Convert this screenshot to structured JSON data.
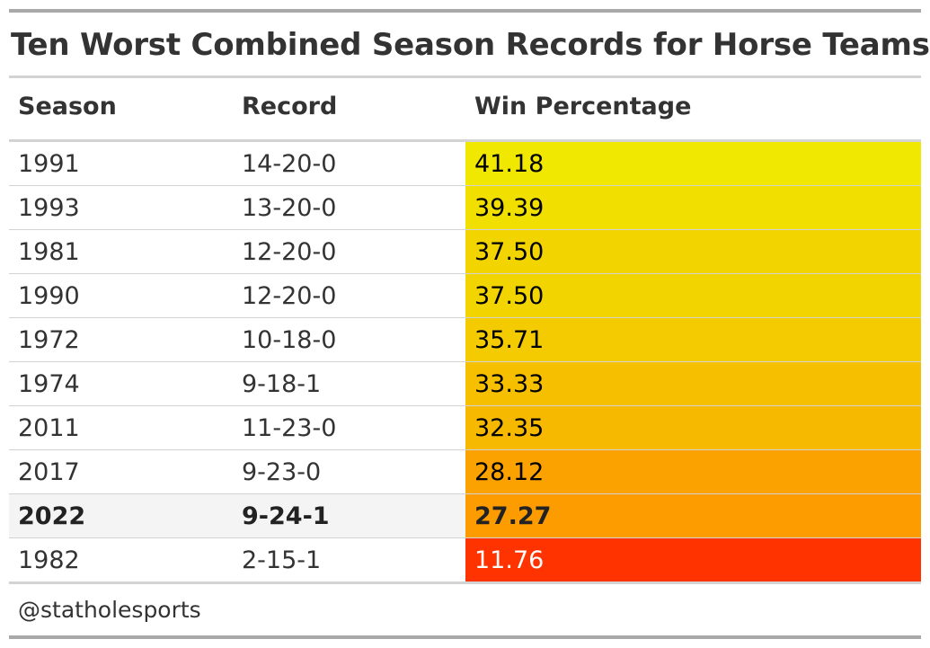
{
  "chart_data": {
    "type": "table",
    "title": "Ten Worst Combined Season Records for Horse Teams",
    "columns": [
      "Season",
      "Record",
      "Win Percentage"
    ],
    "rows": [
      {
        "season": "1991",
        "record": "14-20-0",
        "win_pct": "41.18",
        "value": 41.18,
        "color": "#f0e800",
        "highlight": false
      },
      {
        "season": "1993",
        "record": "13-20-0",
        "win_pct": "39.39",
        "value": 39.39,
        "color": "#f1df00",
        "highlight": false
      },
      {
        "season": "1981",
        "record": "12-20-0",
        "win_pct": "37.50",
        "value": 37.5,
        "color": "#f2d500",
        "highlight": false
      },
      {
        "season": "1990",
        "record": "12-20-0",
        "win_pct": "37.50",
        "value": 37.5,
        "color": "#f2d500",
        "highlight": false
      },
      {
        "season": "1972",
        "record": "10-18-0",
        "win_pct": "35.71",
        "value": 35.71,
        "color": "#f3cb00",
        "highlight": false
      },
      {
        "season": "1974",
        "record": "9-18-1",
        "win_pct": "33.33",
        "value": 33.33,
        "color": "#f6c000",
        "highlight": false
      },
      {
        "season": "2011",
        "record": "11-23-0",
        "win_pct": "32.35",
        "value": 32.35,
        "color": "#f7b900",
        "highlight": false
      },
      {
        "season": "2017",
        "record": "9-23-0",
        "win_pct": "28.12",
        "value": 28.12,
        "color": "#fba200",
        "highlight": false
      },
      {
        "season": "2022",
        "record": "9-24-1",
        "win_pct": "27.27",
        "value": 27.27,
        "color": "#fc9c00",
        "highlight": true
      },
      {
        "season": "1982",
        "record": "2-15-1",
        "win_pct": "11.76",
        "value": 11.76,
        "color": "#ff3300",
        "highlight": false
      }
    ],
    "source": "@statholesports"
  }
}
